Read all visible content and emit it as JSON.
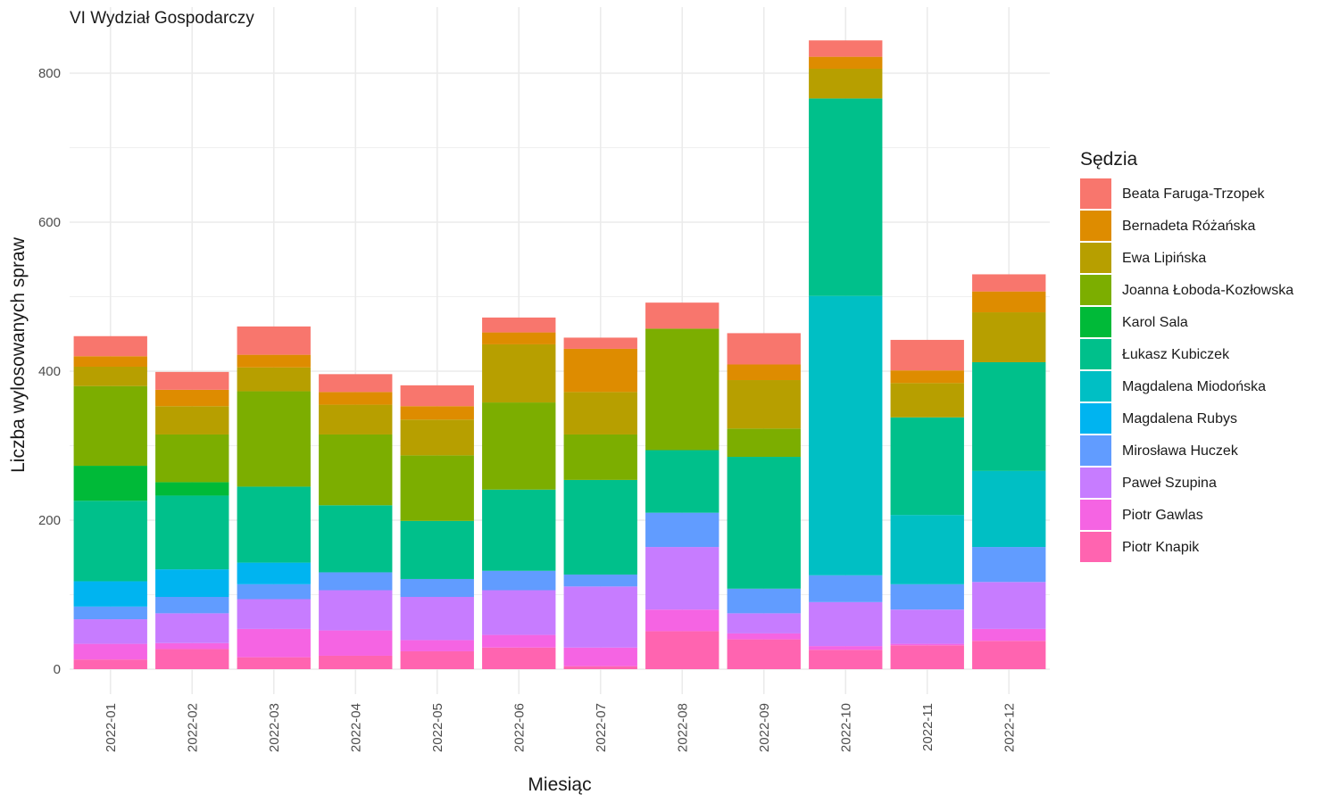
{
  "chart_data": {
    "type": "bar",
    "stacked": true,
    "title": "VI Wydział Gospodarczy",
    "xlabel": "Miesiąc",
    "ylabel": "Liczba wylosowanych spraw",
    "ylim": [
      0,
      880
    ],
    "yticks": [
      0,
      200,
      400,
      600,
      800
    ],
    "grid": true,
    "legend_title": "Sędzia",
    "legend_position": "right",
    "categories": [
      "2022-01",
      "2022-02",
      "2022-03",
      "2022-04",
      "2022-05",
      "2022-06",
      "2022-07",
      "2022-08",
      "2022-09",
      "2022-10",
      "2022-11",
      "2022-12"
    ],
    "series": [
      {
        "name": "Beata Faruga-Trzopek",
        "color": "#F8766D",
        "values": [
          27,
          24,
          38,
          24,
          28,
          20,
          15,
          35,
          42,
          22,
          41,
          23
        ]
      },
      {
        "name": "Bernadeta Różańska",
        "color": "#DE8C00",
        "values": [
          14,
          22,
          17,
          17,
          18,
          16,
          58,
          0,
          21,
          16,
          17,
          28
        ]
      },
      {
        "name": "Ewa Lipińska",
        "color": "#B79F00",
        "values": [
          26,
          38,
          32,
          40,
          48,
          78,
          57,
          0,
          65,
          40,
          46,
          67
        ]
      },
      {
        "name": "Joanna Łoboda-Kozłowska",
        "color": "#7CAE00",
        "values": [
          107,
          64,
          128,
          95,
          88,
          117,
          61,
          163,
          38,
          0,
          0,
          0
        ]
      },
      {
        "name": "Karol Sala",
        "color": "#00BA38",
        "values": [
          47,
          18,
          0,
          0,
          0,
          0,
          0,
          0,
          0,
          0,
          0,
          0
        ]
      },
      {
        "name": "Łukasz Kubiczek",
        "color": "#00C08B",
        "values": [
          108,
          99,
          102,
          90,
          78,
          109,
          127,
          84,
          177,
          265,
          131,
          146
        ]
      },
      {
        "name": "Magdalena Miodońska",
        "color": "#00BFC4",
        "values": [
          0,
          0,
          0,
          0,
          0,
          0,
          0,
          0,
          0,
          375,
          93,
          102
        ]
      },
      {
        "name": "Magdalena Rubys",
        "color": "#00B4F0",
        "values": [
          34,
          37,
          29,
          0,
          0,
          0,
          0,
          0,
          0,
          0,
          0,
          0
        ]
      },
      {
        "name": "Mirosława Huczek",
        "color": "#619CFF",
        "values": [
          17,
          22,
          20,
          24,
          24,
          26,
          16,
          46,
          33,
          36,
          34,
          47
        ]
      },
      {
        "name": "Paweł Szupina",
        "color": "#C77CFF",
        "values": [
          33,
          40,
          40,
          54,
          58,
          60,
          82,
          84,
          27,
          59,
          46,
          63
        ]
      },
      {
        "name": "Piotr Gawlas",
        "color": "#F564E3",
        "values": [
          21,
          8,
          38,
          34,
          15,
          17,
          25,
          29,
          8,
          5,
          2,
          16
        ]
      },
      {
        "name": "Piotr Knapik",
        "color": "#FF64B0",
        "values": [
          13,
          27,
          16,
          18,
          24,
          29,
          4,
          51,
          40,
          26,
          32,
          38
        ]
      }
    ]
  }
}
